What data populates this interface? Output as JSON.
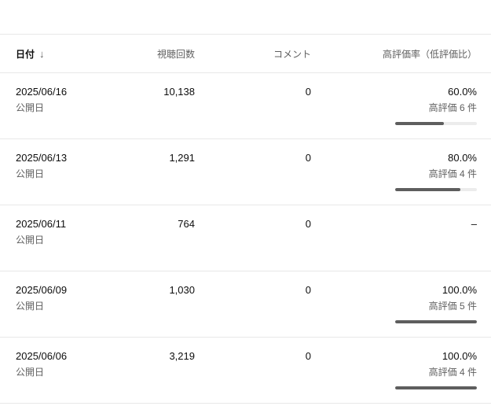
{
  "table": {
    "columns": {
      "date": "日付",
      "views": "視聴回数",
      "comments": "コメント",
      "rating": "高評価率（低評価比）"
    },
    "sort_icon": "↓",
    "rows": [
      {
        "date": "2025/06/16",
        "date_sub": "公開日",
        "views": "10,138",
        "comments": "0",
        "rating": "60.0%",
        "rating_sub": "高評価 6 件",
        "bar_pct": 60
      },
      {
        "date": "2025/06/13",
        "date_sub": "公開日",
        "views": "1,291",
        "comments": "0",
        "rating": "80.0%",
        "rating_sub": "高評価 4 件",
        "bar_pct": 80
      },
      {
        "date": "2025/06/11",
        "date_sub": "公開日",
        "views": "764",
        "comments": "0",
        "rating": "–",
        "rating_sub": "",
        "bar_pct": null
      },
      {
        "date": "2025/06/09",
        "date_sub": "公開日",
        "views": "1,030",
        "comments": "0",
        "rating": "100.0%",
        "rating_sub": "高評価 5 件",
        "bar_pct": 100
      },
      {
        "date": "2025/06/06",
        "date_sub": "公開日",
        "views": "3,219",
        "comments": "0",
        "rating": "100.0%",
        "rating_sub": "高評価 4 件",
        "bar_pct": 100
      }
    ],
    "colors": {
      "bar_fill": "#5e5e5e",
      "bar_track": "#ececec",
      "divider": "#e8e8e8",
      "text_primary": "#0d0d0d",
      "text_secondary": "#606060"
    }
  }
}
